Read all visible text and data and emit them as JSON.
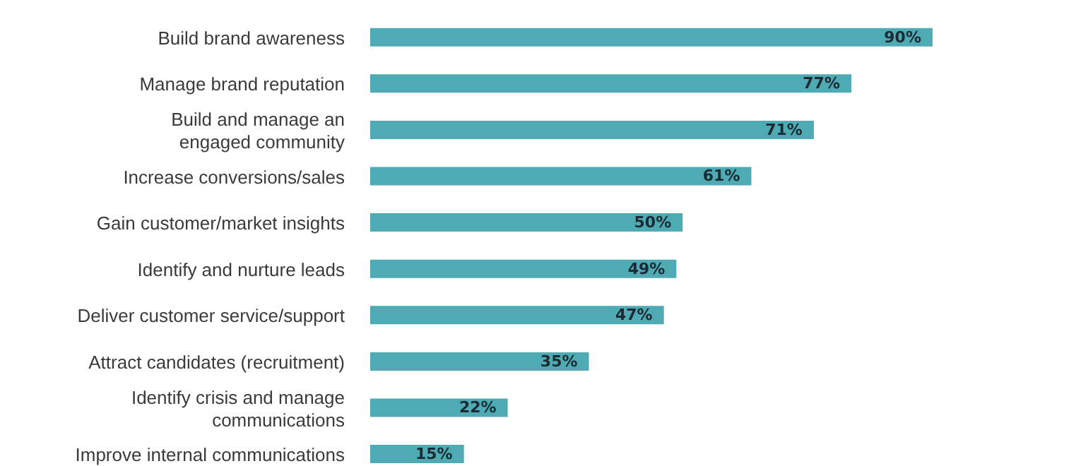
{
  "chart_data": {
    "type": "bar",
    "orientation": "horizontal",
    "color": "#4eaab3",
    "categories": [
      "Build brand awareness",
      "Manage brand reputation",
      "Build and manage an\nengaged community",
      "Increase conversions/sales",
      "Gain customer/market insights",
      "Identify and nurture leads",
      "Deliver customer service/support",
      "Attract candidates (recruitment)",
      "Identify crisis and manage\ncommunications",
      "Improve internal communications"
    ],
    "values": [
      90,
      77,
      71,
      61,
      50,
      49,
      47,
      35,
      22,
      15
    ],
    "value_labels": [
      "90%",
      "77%",
      "71%",
      "61%",
      "50%",
      "49%",
      "47%",
      "35%",
      "22%",
      "15%"
    ],
    "grid": false,
    "legend": false
  }
}
